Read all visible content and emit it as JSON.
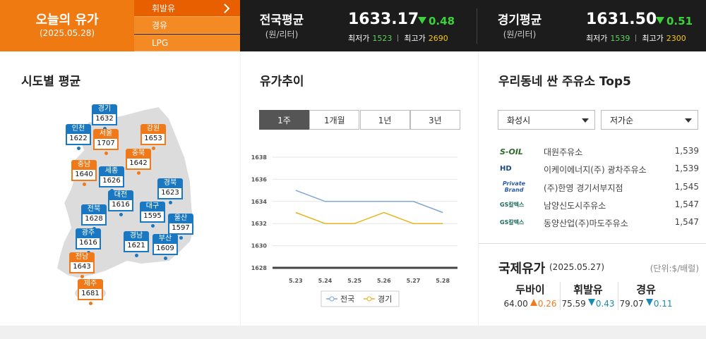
{
  "header": {
    "title": "오늘의 유가",
    "date": "(2025.05.28)",
    "tabs": [
      "휘발유",
      "경유",
      "LPG"
    ],
    "averages": [
      {
        "label": "전국평균",
        "unit": "(원/리터)",
        "price": "1633.17",
        "change": 0.48,
        "direction": "down",
        "min_label": "최저가",
        "min": 1523,
        "max_label": "최고가",
        "max": 2690
      },
      {
        "label": "경기평균",
        "unit": "(원/리터)",
        "price": "1631.50",
        "change": 0.51,
        "direction": "down",
        "min_label": "최저가",
        "min": 1539,
        "max_label": "최고가",
        "max": 2300
      }
    ]
  },
  "regions": {
    "title": "시도별 평균",
    "items": [
      {
        "name": "경기",
        "value": 1632,
        "color": "#1a78c2"
      },
      {
        "name": "인천",
        "value": 1622,
        "color": "#1a78c2"
      },
      {
        "name": "서울",
        "value": 1707,
        "color": "#f07a1a"
      },
      {
        "name": "강원",
        "value": 1653,
        "color": "#f07a1a"
      },
      {
        "name": "충북",
        "value": 1642,
        "color": "#f07a1a"
      },
      {
        "name": "충남",
        "value": 1640,
        "color": "#f07a1a"
      },
      {
        "name": "세종",
        "value": 1626,
        "color": "#1a78c2"
      },
      {
        "name": "대전",
        "value": 1616,
        "color": "#1a78c2"
      },
      {
        "name": "경북",
        "value": 1623,
        "color": "#1a78c2"
      },
      {
        "name": "전북",
        "value": 1628,
        "color": "#1a78c2"
      },
      {
        "name": "대구",
        "value": 1595,
        "color": "#1a78c2"
      },
      {
        "name": "울산",
        "value": 1597,
        "color": "#1a78c2"
      },
      {
        "name": "광주",
        "value": 1616,
        "color": "#1a78c2"
      },
      {
        "name": "경남",
        "value": 1621,
        "color": "#1a78c2"
      },
      {
        "name": "부산",
        "value": 1609,
        "color": "#1a78c2"
      },
      {
        "name": "전남",
        "value": 1643,
        "color": "#f07a1a"
      },
      {
        "name": "제주",
        "value": 1681,
        "color": "#f07a1a"
      }
    ]
  },
  "trend": {
    "title": "유가추이",
    "periods": [
      "1주",
      "1개월",
      "1년",
      "3년"
    ]
  },
  "chart_data": {
    "type": "line",
    "categories": [
      "5.23",
      "5.24",
      "5.25",
      "5.26",
      "5.27",
      "5.28"
    ],
    "series": [
      {
        "name": "전국",
        "color": "#7fa7d6",
        "values": [
          1635,
          1634,
          1634,
          1634,
          1634,
          1633
        ]
      },
      {
        "name": "경기",
        "color": "#e8b520",
        "values": [
          1633,
          1632,
          1632,
          1633,
          1632,
          1632
        ]
      }
    ],
    "ylim": [
      1628,
      1638
    ],
    "yticks": [
      1628,
      1630,
      1632,
      1634,
      1636,
      1638
    ],
    "grid": true
  },
  "stations": {
    "title": "우리동네 싼 주유소 Top5",
    "filters": [
      "화성시",
      "저가순"
    ],
    "items": [
      {
        "brand": "S-OIL",
        "name": "대원주유소",
        "price": "1,539"
      },
      {
        "brand": "HD",
        "name": "이케이에너지(주) 광차주유소",
        "price": "1,539"
      },
      {
        "brand": "Private Brand",
        "name": "(주)한영 경기서부지점",
        "price": "1,545"
      },
      {
        "brand": "GS칼텍스",
        "name": "남양신도시주유소",
        "price": "1,547"
      },
      {
        "brand": "GS칼텍스",
        "name": "동양산업(주)마도주유소",
        "price": "1,547"
      }
    ]
  },
  "international": {
    "title": "국제유가",
    "date": "(2025.05.27)",
    "unit": "(단위:$/배럴)",
    "items": [
      {
        "name": "두바이",
        "price": "64.00",
        "change": 0.26,
        "direction": "up"
      },
      {
        "name": "휘발유",
        "price": "75.59",
        "change": 0.43,
        "direction": "down"
      },
      {
        "name": "경유",
        "price": "79.07",
        "change": 0.11,
        "direction": "down"
      }
    ]
  }
}
